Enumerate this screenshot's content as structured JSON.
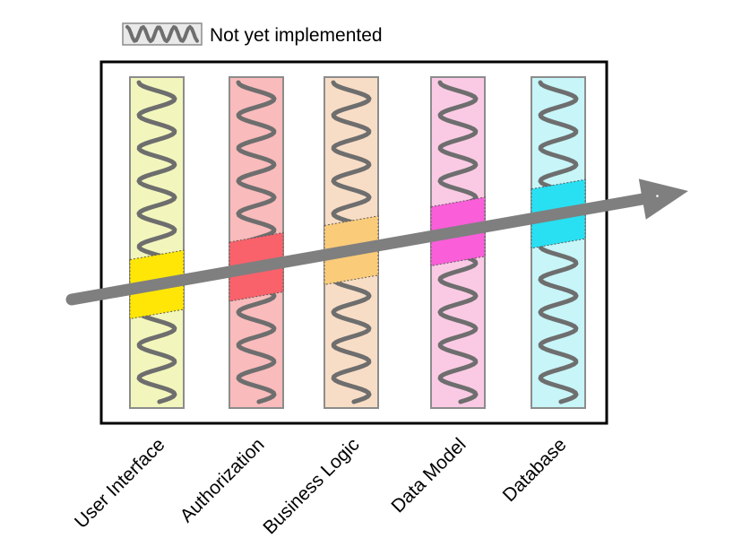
{
  "legend": {
    "label": "Not yet implemented",
    "swatch_fill": "#e9e9e9",
    "wave_color": "#6e6e6e"
  },
  "arrow": {
    "color": "#7f7f7f"
  },
  "wave_color": "#6e6e6e",
  "layers": [
    {
      "label": "User Interface",
      "body_color": "#F2F6BC",
      "highlight_color": "#FFE607"
    },
    {
      "label": "Authorization",
      "body_color": "#F9BBBB",
      "highlight_color": "#F9626B"
    },
    {
      "label": "Business Logic",
      "body_color": "#F8DDC6",
      "highlight_color": "#FACB79"
    },
    {
      "label": "Data Model",
      "body_color": "#FACAE4",
      "highlight_color": "#FA5ED9"
    },
    {
      "label": "Database",
      "body_color": "#C7F5F8",
      "highlight_color": "#28E0F2"
    }
  ]
}
